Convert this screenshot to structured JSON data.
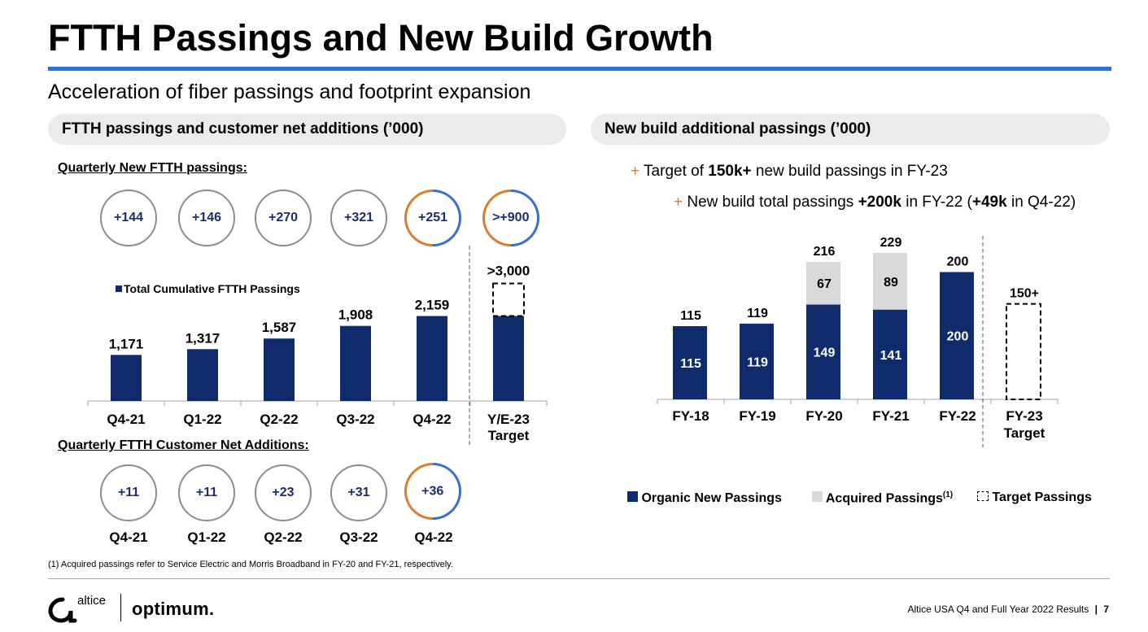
{
  "title": "FTTH Passings and New Build Growth",
  "subtitle": "Acceleration of fiber passings and footprint expansion",
  "left_panel": {
    "header": "FTTH passings and customer net additions (’000)",
    "passings_label": "Quarterly New FTTH passings:",
    "passings_circles": [
      "+144",
      "+146",
      "+270",
      "+321",
      "+251",
      ">+900"
    ],
    "net_adds_label": "Quarterly FTTH Customer Net Additions:",
    "net_adds_circles": [
      "+11",
      "+11",
      "+23",
      "+31",
      "+36"
    ],
    "net_adds_quarters": [
      "Q4-21",
      "Q1-22",
      "Q2-22",
      "Q3-22",
      "Q4-22"
    ]
  },
  "right_panel": {
    "header": "New build additional passings (’000)",
    "bullet1_pre": "Target of ",
    "bullet1_bold": "150k+",
    "bullet1_post": " new build passings in FY-23",
    "bullet2_pre": "New build total passings ",
    "bullet2_bold1": "+200k",
    "bullet2_mid": " in FY-22 (",
    "bullet2_bold2": "+49k",
    "bullet2_post": " in Q4-22)",
    "bullet_marker": "+"
  },
  "chart_data": [
    {
      "type": "bar",
      "legend": "Total Cumulative FTTH Passings",
      "categories": [
        "Q4-21",
        "Q1-22",
        "Q2-22",
        "Q3-22",
        "Q4-22",
        "Y/E-23 Target"
      ],
      "values": [
        1171,
        1317,
        1587,
        1908,
        2159,
        2159
      ],
      "labels": [
        "1,171",
        "1,317",
        "1,587",
        "1,908",
        "2,159",
        ">3,000"
      ],
      "target_value": 3000,
      "ylim": [
        0,
        3100
      ],
      "colors": {
        "bar": "#0f2b6b"
      }
    },
    {
      "type": "bar",
      "stacked": true,
      "categories": [
        "FY-18",
        "FY-19",
        "FY-20",
        "FY-21",
        "FY-22",
        "FY-23 Target"
      ],
      "series": [
        {
          "name": "Organic New Passings",
          "values": [
            115,
            119,
            149,
            141,
            200,
            null
          ],
          "color": "#0f2b6b"
        },
        {
          "name": "Acquired Passings",
          "values": [
            0,
            0,
            67,
            89,
            0,
            null
          ],
          "color": "#d9d9d9"
        },
        {
          "name": "Target Passings",
          "values": [
            null,
            null,
            null,
            null,
            null,
            150
          ],
          "color": "#000000"
        }
      ],
      "totals": [
        "115",
        "119",
        "216",
        "229",
        "200",
        "150+"
      ],
      "legend_superscript": "(1)",
      "ylim": [
        0,
        240
      ]
    }
  ],
  "footnote": "(1)   Acquired passings refer to Service Electric and Morris Broadband in FY-20 and FY-21, respectively.",
  "footer": {
    "logo_altice": "altice",
    "logo_optimum": "optimum.",
    "report": "Altice USA Q4 and Full Year 2022 Results",
    "page_sep": "|",
    "page": "7"
  }
}
